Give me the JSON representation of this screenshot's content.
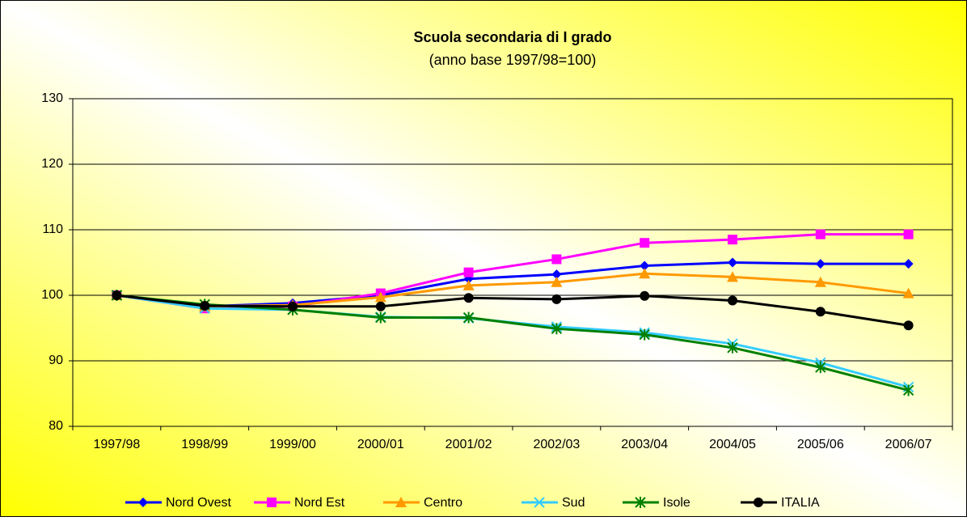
{
  "chart_data": {
    "type": "line",
    "title": "Scuola secondaria di I grado",
    "subtitle": "(anno base 1997/98=100)",
    "categories": [
      "1997/98",
      "1998/99",
      "1999/00",
      "2000/01",
      "2001/02",
      "2002/03",
      "2003/04",
      "2004/05",
      "2005/06",
      "2006/07"
    ],
    "series": [
      {
        "name": "Nord Ovest",
        "color": "#0000ff",
        "marker": "diamond",
        "values": [
          100,
          98.3,
          98.8,
          100,
          102.5,
          103.2,
          104.5,
          105,
          104.8,
          104.8
        ]
      },
      {
        "name": "Nord Est",
        "color": "#ff00ff",
        "marker": "square",
        "values": [
          100,
          98,
          98.3,
          100.3,
          103.5,
          105.5,
          108,
          108.5,
          109.3,
          109.3
        ]
      },
      {
        "name": "Centro",
        "color": "#ff9900",
        "marker": "triangle",
        "values": [
          100,
          98.3,
          98.5,
          99.7,
          101.5,
          102,
          103.3,
          102.8,
          102,
          100.3
        ]
      },
      {
        "name": "Sud",
        "color": "#33ccff",
        "marker": "x",
        "values": [
          100,
          98,
          97.8,
          96.7,
          96.5,
          95.2,
          94.3,
          92.6,
          89.7,
          86
        ]
      },
      {
        "name": "Isole",
        "color": "#008000",
        "marker": "star",
        "values": [
          100,
          98.6,
          97.8,
          96.6,
          96.6,
          94.9,
          94,
          92,
          89,
          85.5
        ]
      },
      {
        "name": "ITALIA",
        "color": "#000000",
        "marker": "circle",
        "values": [
          100,
          98.4,
          98.3,
          98.3,
          99.6,
          99.4,
          99.9,
          99.2,
          97.5,
          95.4
        ]
      }
    ],
    "ylim": [
      80,
      130
    ],
    "yticks": [
      80,
      90,
      100,
      110,
      120,
      130
    ],
    "grid": true,
    "legend": "bottom"
  }
}
